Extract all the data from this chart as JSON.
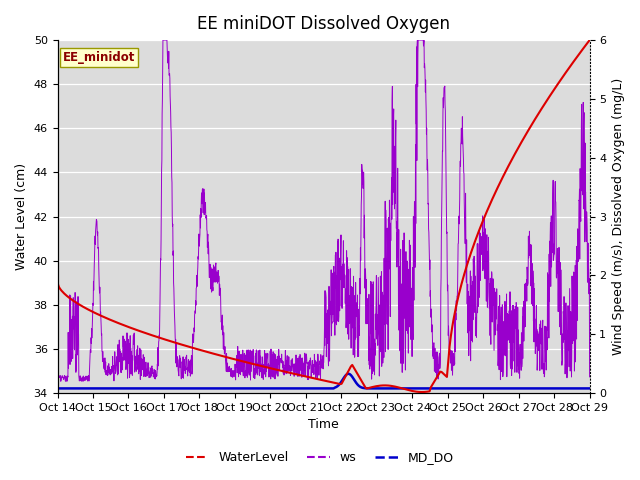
{
  "title": "EE miniDOT Dissolved Oxygen",
  "xlabel": "Time",
  "ylabel_left": "Water Level (cm)",
  "ylabel_right": "Wind Speed (m/s), Dissolved Oxygen (mg/L)",
  "legend_label": "EE_minidot",
  "xlim": [
    0,
    15
  ],
  "ylim_left": [
    34,
    50
  ],
  "ylim_right": [
    0,
    6
  ],
  "xtick_labels": [
    "Oct 14",
    "Oct 15",
    "Oct 16",
    "Oct 17",
    "Oct 18",
    "Oct 19",
    "Oct 20",
    "Oct 21",
    "Oct 22",
    "Oct 23",
    "Oct 24",
    "Oct 25",
    "Oct 26",
    "Oct 27",
    "Oct 28",
    "Oct 29"
  ],
  "background_color": "#dcdcdc",
  "wl_color": "#dd0000",
  "ws_color": "#9900cc",
  "do_color": "#0000cc",
  "title_fontsize": 12,
  "axis_label_fontsize": 9,
  "tick_fontsize": 8
}
